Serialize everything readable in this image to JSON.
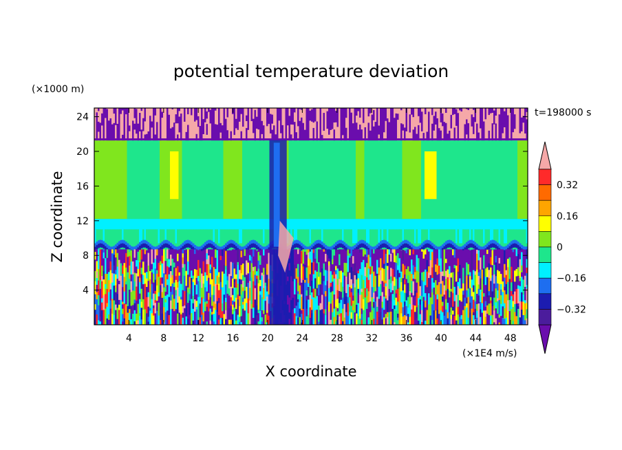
{
  "chart_data": {
    "type": "heatmap",
    "title": "potential temperature deviation",
    "xlabel": "X coordinate",
    "ylabel": "Z coordinate",
    "x_unit": "(×1E4 m/s)",
    "y_unit": "(×1000 m)",
    "time_label": "t=198000 s",
    "xlim": [
      0,
      50
    ],
    "ylim": [
      0,
      25
    ],
    "xticks": [
      4,
      8,
      12,
      16,
      20,
      24,
      28,
      32,
      36,
      40,
      44,
      48
    ],
    "yticks": [
      4,
      8,
      12,
      16,
      20,
      24
    ],
    "colorbar": {
      "levels": [
        -0.4,
        -0.32,
        -0.24,
        -0.16,
        -0.08,
        0,
        0.08,
        0.16,
        0.24,
        0.32,
        0.4
      ],
      "labeled_levels": [
        0.32,
        0.16,
        0,
        -0.16,
        -0.32
      ],
      "labels": [
        "0.32",
        "0.16",
        "0",
        "−0.16",
        "−0.32"
      ],
      "colors": [
        "#6a0dad",
        "#4b1c9c",
        "#1c1cb0",
        "#1e6ef0",
        "#00f0ff",
        "#1ee68c",
        "#80e61e",
        "#ffff00",
        "#ffa500",
        "#ff6a00",
        "#ff2a2a",
        "#f5a8a8"
      ],
      "extend": "both"
    },
    "regions": [
      {
        "z_range": [
          21.3,
          25
        ],
        "description_colors": [
          "#6a0dad",
          "#f5a8a8"
        ]
      },
      {
        "z_range": [
          9,
          21.3
        ],
        "description_colors": [
          "#1ee68c",
          "#80e61e",
          "#00f0ff"
        ]
      },
      {
        "z_range": [
          0,
          9
        ],
        "description_colors": [
          "#6a0dad",
          "#00f0ff",
          "#80e61e",
          "#ffff00",
          "#ff2a2a"
        ]
      }
    ]
  }
}
